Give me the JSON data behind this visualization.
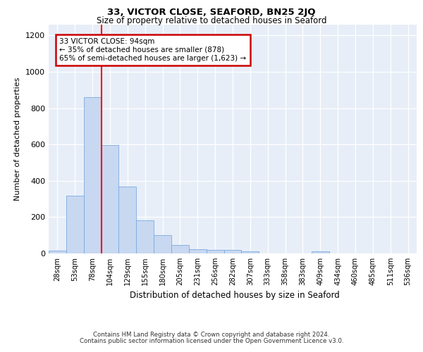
{
  "title_line1": "33, VICTOR CLOSE, SEAFORD, BN25 2JQ",
  "title_line2": "Size of property relative to detached houses in Seaford",
  "xlabel": "Distribution of detached houses by size in Seaford",
  "ylabel": "Number of detached properties",
  "categories": [
    "28sqm",
    "53sqm",
    "78sqm",
    "104sqm",
    "129sqm",
    "155sqm",
    "180sqm",
    "205sqm",
    "231sqm",
    "256sqm",
    "282sqm",
    "307sqm",
    "333sqm",
    "358sqm",
    "383sqm",
    "409sqm",
    "434sqm",
    "460sqm",
    "485sqm",
    "511sqm",
    "536sqm"
  ],
  "values": [
    15,
    318,
    860,
    597,
    370,
    183,
    100,
    48,
    22,
    18,
    18,
    12,
    0,
    0,
    0,
    12,
    0,
    0,
    0,
    0,
    0
  ],
  "bar_color": "#c8d8f0",
  "bar_edge_color": "#7aabe0",
  "vline_color": "red",
  "annotation_text": "33 VICTOR CLOSE: 94sqm\n← 35% of detached houses are smaller (878)\n65% of semi-detached houses are larger (1,623) →",
  "annotation_box_color": "white",
  "annotation_box_edge_color": "#cc0000",
  "ylim": [
    0,
    1260
  ],
  "yticks": [
    0,
    200,
    400,
    600,
    800,
    1000,
    1200
  ],
  "background_color": "#e8eef8",
  "footer_line1": "Contains HM Land Registry data © Crown copyright and database right 2024.",
  "footer_line2": "Contains public sector information licensed under the Open Government Licence v3.0."
}
